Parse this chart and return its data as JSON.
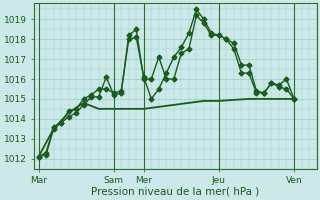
{
  "title": "",
  "xlabel": "Pression niveau de la mer( hPa )",
  "background_color": "#cce8e8",
  "grid_color": "#99cccc",
  "line_color": "#1a5c1a",
  "ylim": [
    1011.5,
    1019.8
  ],
  "yticks": [
    1012,
    1013,
    1014,
    1015,
    1016,
    1017,
    1018,
    1019
  ],
  "xtick_labels": [
    "Mar",
    "Sam",
    "Mer",
    "Jeu",
    "Ven"
  ],
  "xtick_positions": [
    0,
    5,
    7,
    12,
    17
  ],
  "xlim": [
    -0.3,
    18.5
  ],
  "vline_positions": [
    0,
    5,
    7,
    12,
    17
  ],
  "lines": [
    {
      "x": [
        0,
        0.5,
        1,
        1.5,
        2,
        2.5,
        3,
        3.5,
        4,
        4.5,
        5,
        5.5,
        6,
        6.5,
        7,
        7.5,
        8,
        8.5,
        9,
        9.5,
        10,
        10.5,
        11,
        11.5,
        12,
        12.5,
        13,
        13.5,
        14,
        14.5,
        15,
        15.5,
        16,
        16.5,
        17
      ],
      "y": [
        1012.1,
        1012.3,
        1013.6,
        1013.8,
        1014.1,
        1014.3,
        1014.7,
        1015.1,
        1015.1,
        1016.1,
        1015.2,
        1015.3,
        1018.2,
        1018.5,
        1016.0,
        1016.0,
        1017.1,
        1016.0,
        1016.0,
        1017.3,
        1017.5,
        1019.2,
        1018.8,
        1018.2,
        1018.2,
        1018.0,
        1017.8,
        1016.7,
        1016.7,
        1015.4,
        1015.3,
        1015.8,
        1015.7,
        1016.0,
        1015.0
      ],
      "marker": "D",
      "markersize": 2.5,
      "linewidth": 1.0
    },
    {
      "x": [
        0,
        0.5,
        1,
        1.5,
        2,
        2.5,
        3,
        3.5,
        4,
        4.5,
        5,
        5.5,
        6,
        6.5,
        7,
        7.5,
        8,
        8.5,
        9,
        9.5,
        10,
        10.5,
        11,
        11.5,
        12,
        12.5,
        13,
        13.5,
        14,
        14.5,
        15,
        15.5,
        16,
        16.5,
        17
      ],
      "y": [
        1012.1,
        1012.2,
        1013.5,
        1013.8,
        1014.4,
        1014.5,
        1015.0,
        1015.2,
        1015.5,
        1015.5,
        1015.3,
        1015.4,
        1018.0,
        1018.1,
        1016.1,
        1015.0,
        1015.5,
        1016.3,
        1017.1,
        1017.6,
        1018.3,
        1019.5,
        1019.0,
        1018.3,
        1018.2,
        1018.0,
        1017.5,
        1016.3,
        1016.3,
        1015.3,
        1015.3,
        1015.8,
        1015.6,
        1015.5,
        1015.0
      ],
      "marker": "D",
      "markersize": 2.5,
      "linewidth": 1.0
    },
    {
      "x": [
        0,
        1,
        2,
        3,
        4,
        5,
        6,
        7,
        8,
        9,
        10,
        11,
        12,
        13,
        14,
        15,
        16,
        17
      ],
      "y": [
        1012.1,
        1013.5,
        1014.3,
        1014.8,
        1014.5,
        1014.5,
        1014.5,
        1014.5,
        1014.6,
        1014.7,
        1014.8,
        1014.9,
        1014.9,
        1014.95,
        1015.0,
        1015.0,
        1015.0,
        1015.0
      ],
      "marker": null,
      "markersize": 0,
      "linewidth": 1.3
    }
  ]
}
